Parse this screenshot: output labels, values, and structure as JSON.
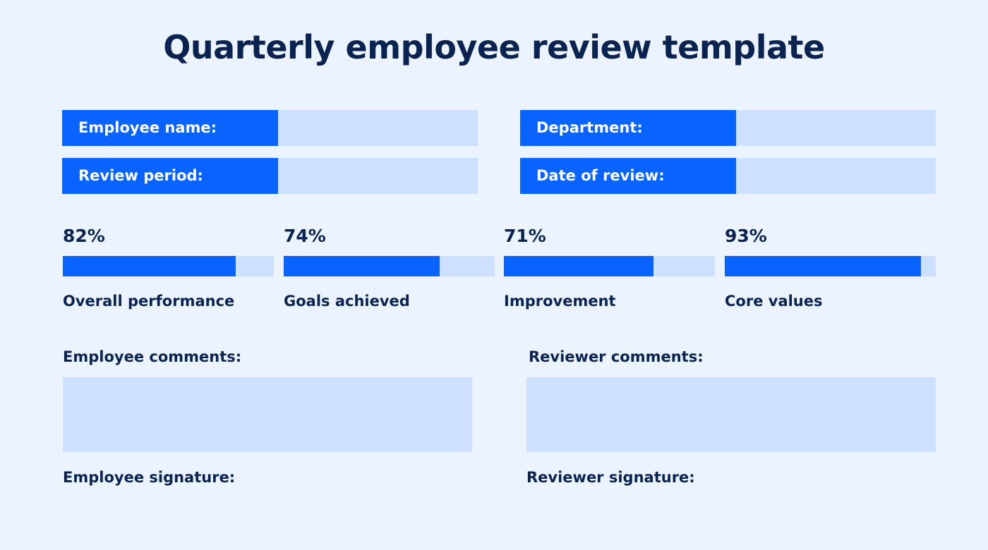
{
  "header": {
    "title": "Quarterly employee review template"
  },
  "fields": [
    {
      "label": "Employee name:"
    },
    {
      "label": "Department:"
    },
    {
      "label": "Review period:"
    },
    {
      "label": "Date of review:"
    }
  ],
  "metrics": [
    {
      "value": 82,
      "label": "82%",
      "name": "Overall performance"
    },
    {
      "value": 74,
      "label": "74%",
      "name": "Goals achieved"
    },
    {
      "value": 71,
      "label": "71%",
      "name": "Improvement"
    },
    {
      "value": 93,
      "label": "93%",
      "name": "Core values"
    }
  ],
  "comments": [
    {
      "label": "Employee comments:",
      "signature": "Employee signature:"
    },
    {
      "label": "Reviewer comments:",
      "signature": "Reviewer signature:"
    }
  ]
}
